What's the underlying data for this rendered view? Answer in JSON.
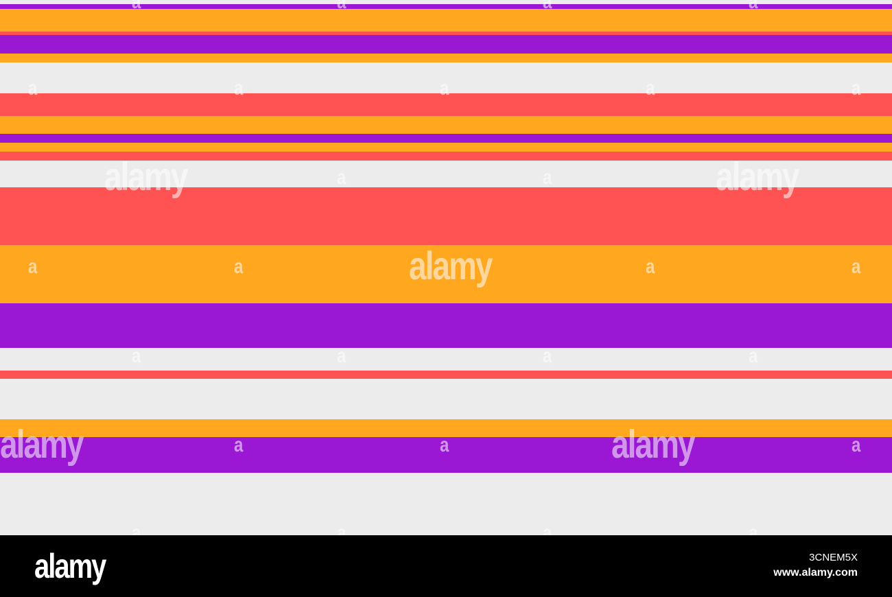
{
  "watermark": {
    "logo_text": "alamy",
    "letter": "a"
  },
  "footer": {
    "logo": "alamy",
    "image_id": "3CNEM5X",
    "site": "www.alamy.com"
  },
  "colors": {
    "purple": "#9a17d4",
    "orange": "#fea71f",
    "coral": "#ff5252",
    "light_gray": "#ececec",
    "black": "#000000"
  }
}
